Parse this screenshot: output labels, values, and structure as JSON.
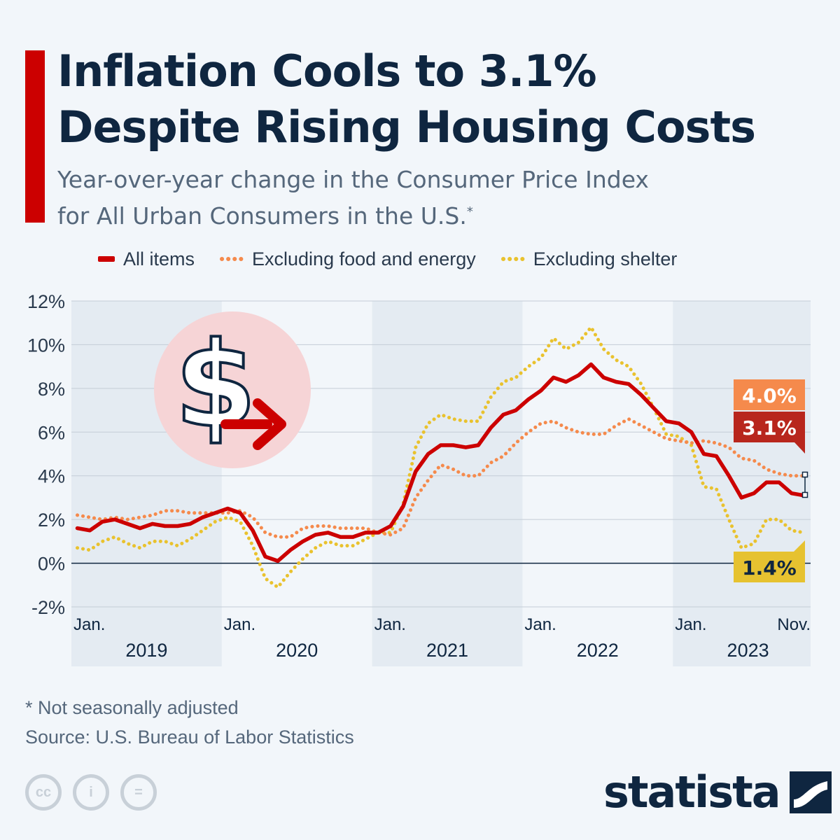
{
  "header": {
    "title_line1": "Inflation Cools to 3.1%",
    "title_line2": "Despite Rising Housing Costs",
    "subtitle_line1": "Year-over-year change in the Consumer Price Index",
    "subtitle_line2": "for All Urban Consumers in the U.S.",
    "subtitle_mark": "*"
  },
  "colors": {
    "all_items": "#cc0000",
    "core": "#f58a4c",
    "ex_shelter": "#e9c22e",
    "label_all_items": "#b8261d",
    "label_core": "#f58a4c",
    "label_ex_shelter": "#e6c230",
    "band": "#e4ebf2",
    "text_dark": "#0f2640"
  },
  "icons": {
    "illustration": "dollar-down-arrow-icon",
    "cc": [
      "cc-icon",
      "attribution-icon",
      "no-derivatives-icon"
    ],
    "brand": "statista-logo-icon"
  },
  "chart_data": {
    "type": "line",
    "ylim": [
      -2,
      12
    ],
    "yticks": [
      -2,
      0,
      2,
      4,
      6,
      8,
      10,
      12
    ],
    "ytick_labels": [
      "-2%",
      "0%",
      "2%",
      "4%",
      "6%",
      "8%",
      "10%",
      "12%"
    ],
    "x_start": "2019-01",
    "x_end": "2023-11",
    "month_labels": [
      "Jan.",
      "Jan.",
      "Jan.",
      "Jan.",
      "Jan.",
      "Nov."
    ],
    "year_labels": [
      "2019",
      "2020",
      "2021",
      "2022",
      "2023"
    ],
    "series": [
      {
        "name": "All items",
        "style": "solid",
        "values": [
          1.6,
          1.5,
          1.9,
          2.0,
          1.8,
          1.6,
          1.8,
          1.7,
          1.7,
          1.8,
          2.1,
          2.3,
          2.5,
          2.3,
          1.5,
          0.3,
          0.1,
          0.6,
          1.0,
          1.3,
          1.4,
          1.2,
          1.2,
          1.4,
          1.4,
          1.7,
          2.6,
          4.2,
          5.0,
          5.4,
          5.4,
          5.3,
          5.4,
          6.2,
          6.8,
          7.0,
          7.5,
          7.9,
          8.5,
          8.3,
          8.6,
          9.1,
          8.5,
          8.3,
          8.2,
          7.7,
          7.1,
          6.5,
          6.4,
          6.0,
          5.0,
          4.9,
          4.0,
          3.0,
          3.2,
          3.7,
          3.7,
          3.2,
          3.1
        ],
        "end_label": "3.1%"
      },
      {
        "name": "Excluding food and energy",
        "style": "dotted",
        "values": [
          2.2,
          2.1,
          2.0,
          2.1,
          2.0,
          2.1,
          2.2,
          2.4,
          2.4,
          2.3,
          2.3,
          2.3,
          2.3,
          2.4,
          2.1,
          1.4,
          1.2,
          1.2,
          1.6,
          1.7,
          1.7,
          1.6,
          1.6,
          1.6,
          1.4,
          1.3,
          1.6,
          3.0,
          3.8,
          4.5,
          4.3,
          4.0,
          4.0,
          4.6,
          4.9,
          5.5,
          6.0,
          6.4,
          6.5,
          6.2,
          6.0,
          5.9,
          5.9,
          6.3,
          6.6,
          6.3,
          6.0,
          5.7,
          5.6,
          5.5,
          5.6,
          5.5,
          5.3,
          4.8,
          4.7,
          4.3,
          4.1,
          4.0,
          4.0
        ],
        "end_label": "4.0%"
      },
      {
        "name": "Excluding shelter",
        "style": "dotted",
        "values": [
          0.7,
          0.6,
          1.0,
          1.2,
          0.9,
          0.7,
          1.0,
          1.0,
          0.8,
          1.1,
          1.5,
          1.9,
          2.1,
          1.9,
          0.8,
          -0.7,
          -1.1,
          -0.4,
          0.2,
          0.7,
          1.0,
          0.8,
          0.8,
          1.1,
          1.4,
          1.4,
          2.7,
          5.3,
          6.4,
          6.8,
          6.6,
          6.5,
          6.5,
          7.6,
          8.3,
          8.5,
          9.0,
          9.4,
          10.3,
          9.8,
          10.1,
          10.8,
          9.8,
          9.3,
          9.0,
          8.2,
          7.1,
          5.9,
          5.8,
          5.4,
          3.5,
          3.4,
          2.0,
          0.7,
          0.9,
          2.0,
          2.0,
          1.5,
          1.4
        ],
        "end_label": "1.4%"
      }
    ]
  },
  "footer": {
    "note": "* Not seasonally adjusted",
    "source": "Source: U.S. Bureau of Labor Statistics",
    "cc_labels": [
      "cc",
      "i",
      "="
    ],
    "brand": "statista"
  }
}
